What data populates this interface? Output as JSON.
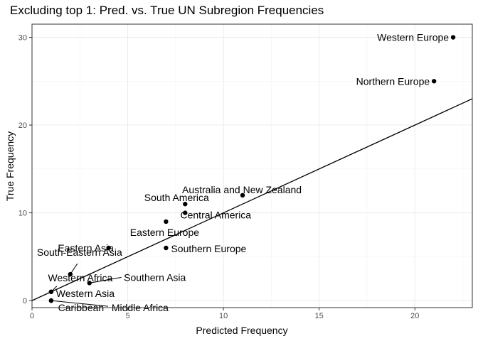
{
  "chart_data": {
    "type": "scatter",
    "title": "Excluding top 1: Pred. vs. True  UN Subregion Frequencies",
    "xlabel": "Predicted Frequency",
    "ylabel": "True Frequency",
    "xlim": [
      0,
      23
    ],
    "ylim": [
      -0.8,
      31.5
    ],
    "xticks": [
      0,
      5,
      10,
      15,
      20
    ],
    "yticks": [
      0,
      10,
      20,
      30
    ],
    "grid": true,
    "reference_line": {
      "intercept": 0,
      "slope": 1
    },
    "points": [
      {
        "label": "Western Europe",
        "x": 22,
        "y": 30
      },
      {
        "label": "Northern Europe",
        "x": 21,
        "y": 25
      },
      {
        "label": "Australia and New Zealand",
        "x": 11,
        "y": 12
      },
      {
        "label": "South America",
        "x": 8,
        "y": 11
      },
      {
        "label": "Central America",
        "x": 8,
        "y": 10
      },
      {
        "label": "Eastern Europe",
        "x": 7,
        "y": 9
      },
      {
        "label": "Eastern Asia",
        "x": 4,
        "y": 6
      },
      {
        "label": "Southern Europe",
        "x": 7,
        "y": 6
      },
      {
        "label": "South-Eastern Asia",
        "x": 2,
        "y": 3
      },
      {
        "label": "Western Africa",
        "x": 1,
        "y": 1
      },
      {
        "label": "Southern Asia",
        "x": 3,
        "y": 2
      },
      {
        "label": "Western Asia",
        "x": 1,
        "y": 1
      },
      {
        "label": "Caribbean",
        "x": 1,
        "y": 0
      },
      {
        "label": "Middle Africa",
        "x": 1,
        "y": 0
      }
    ]
  }
}
